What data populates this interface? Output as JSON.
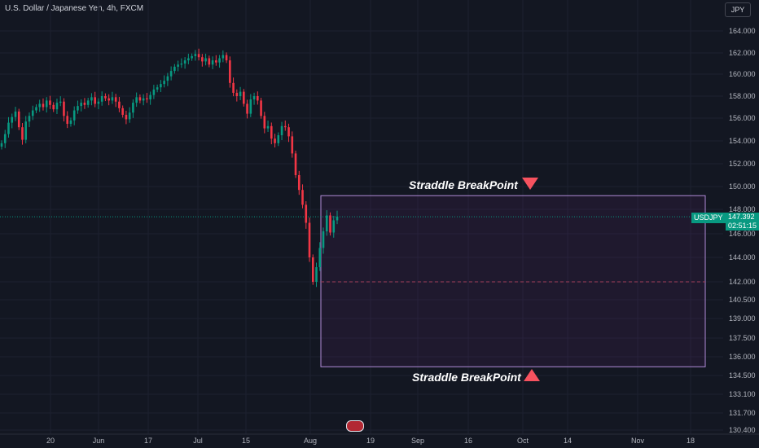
{
  "header": {
    "title": "U.S. Dollar / Japanese Yen, 4h, FXCM"
  },
  "currency": "JPY",
  "price_axis": [
    "164.000",
    "162.000",
    "160.000",
    "158.000",
    "156.000",
    "154.000",
    "152.000",
    "150.000",
    "148.000",
    "146.000",
    "144.000",
    "142.000",
    "140.500",
    "139.000",
    "137.500",
    "136.000",
    "134.500",
    "133.100",
    "131.700",
    "130.400"
  ],
  "time_axis": [
    "20",
    "Jun",
    "17",
    "Jul",
    "15",
    "Aug",
    "19",
    "Sep",
    "16",
    "Oct",
    "14",
    "Nov",
    "18"
  ],
  "symbol_tag": "USDJPY",
  "last_price": "147.392",
  "countdown": "02:51:15",
  "annotations": {
    "top": "Straddle BreakPoint",
    "bottom": "Straddle BreakPoint"
  },
  "events_badge": "",
  "colors": {
    "up": "#089981",
    "down": "#f23645",
    "box": "#b18bd8",
    "arrow": "#f7525f",
    "background": "#131722"
  },
  "chart_data": {
    "type": "candlestick",
    "title": "U.S. Dollar / Japanese Yen, 4h, FXCM",
    "ylim": [
      130.4,
      165.0
    ],
    "scale": "log",
    "last_price": 147.392,
    "straddle_box": {
      "top": 149.2,
      "bottom": 135.2,
      "mid_line": 142.0
    },
    "series": [
      {
        "values": [
          153.8,
          154.6,
          155.6,
          156.1,
          156.6,
          155.2,
          154.1,
          155.7,
          156.2,
          156.7,
          157.0,
          157.3,
          157.0,
          157.6,
          157.2,
          156.8,
          157.4,
          157.5,
          156.2,
          155.5,
          155.8,
          156.7,
          157.1,
          157.4,
          157.2,
          157.6,
          157.9,
          157.3,
          157.5,
          158.0,
          157.8,
          157.6,
          157.9,
          157.5,
          156.9,
          156.3,
          155.9,
          156.5,
          157.4,
          157.9,
          157.6,
          157.8,
          157.7,
          158.1,
          158.6,
          158.8,
          159.1,
          159.4,
          159.8,
          160.3,
          160.7,
          160.9,
          161.0,
          161.3,
          161.5,
          161.7,
          161.9,
          161.6,
          161.2,
          161.5,
          160.9,
          161.3,
          161.1,
          161.5,
          161.8,
          161.3,
          159.2,
          158.3,
          158.0,
          158.4,
          157.3,
          156.4,
          157.7,
          158.0,
          157.6,
          156.2,
          155.1,
          155.3,
          154.2,
          153.8,
          154.5,
          155.3,
          155.2,
          154.4,
          152.9,
          151.0,
          149.7,
          148.4,
          146.9,
          144.0,
          142.0,
          143.2,
          144.8,
          146.2,
          147.5,
          146.1,
          147.1,
          147.4
        ]
      }
    ]
  }
}
